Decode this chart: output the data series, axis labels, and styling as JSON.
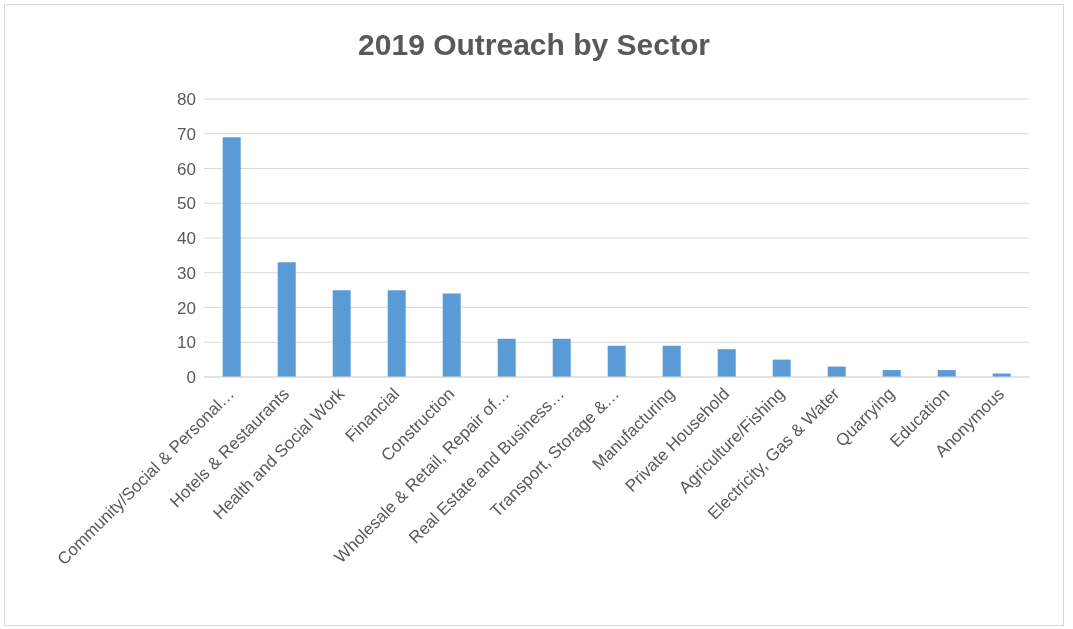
{
  "chart_data": {
    "type": "bar",
    "title": "2019 Outreach by Sector",
    "categories": [
      "Community/Social & Personal…",
      "Hotels & Restaurants",
      "Health and Social Work",
      "Financial",
      "Construction",
      "Wholesale & Retail, Repair of…",
      "Real Estate and Business…",
      "Transport, Storage &…",
      "Manufacturing",
      "Private Household",
      "Agriculture/Fishing",
      "Electricity, Gas & Water",
      "Quarrying",
      "Education",
      "Anonymous"
    ],
    "values": [
      69,
      33,
      25,
      25,
      24,
      11,
      11,
      9,
      9,
      8,
      5,
      3,
      2,
      2,
      1
    ],
    "color": "#5b9bd5",
    "ylim": [
      0,
      80
    ],
    "yticks": [
      0,
      10,
      20,
      30,
      40,
      50,
      60,
      70,
      80
    ],
    "grid": "y"
  }
}
